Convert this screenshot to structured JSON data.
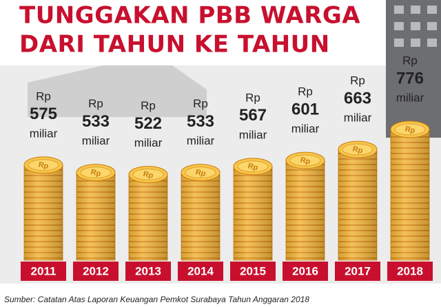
{
  "chart_data": {
    "type": "bar",
    "title": [
      "TUNGGAKAN PBB WARGA",
      "DARI TAHUN KE TAHUN"
    ],
    "categories": [
      "2011",
      "2012",
      "2013",
      "2014",
      "2015",
      "2016",
      "2017",
      "2018"
    ],
    "values": [
      575,
      533,
      522,
      533,
      567,
      601,
      663,
      776
    ],
    "value_prefix": "Rp",
    "value_unit": "miliar",
    "color": "#f3b53a",
    "label_color": "#c8102e",
    "source": "Sumber: Catatan Atas Laporan Keuangan Pemkot Surabaya Tahun Anggaran 2018"
  }
}
